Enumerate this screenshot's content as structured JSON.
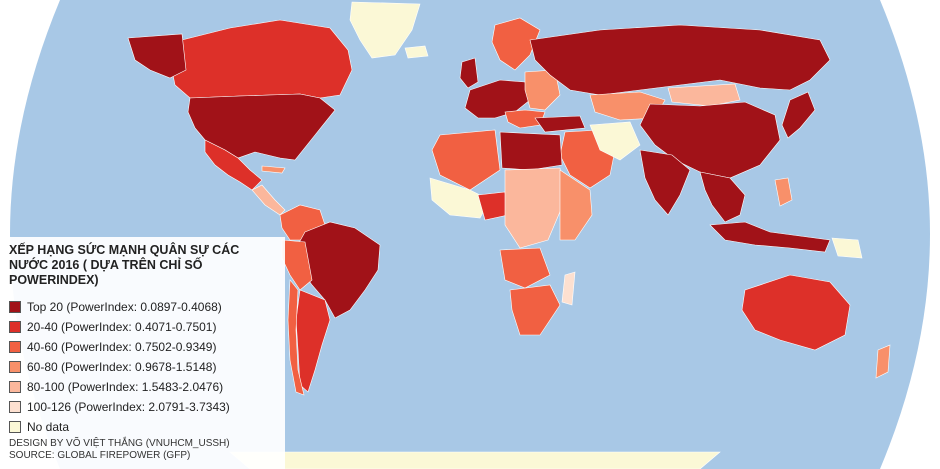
{
  "colors": {
    "ocean": "#a8c8e6",
    "no_data": "#fbf8d6",
    "top20": "#a11218",
    "r20_40": "#dd3029",
    "r40_60": "#f16042",
    "r60_80": "#f8906a",
    "r80_100": "#fbb79c",
    "r100_126": "#fde0d0"
  },
  "legend": {
    "title": "XẾP HẠNG SỨC MẠNH QUÂN SỰ CÁC NƯỚC 2016 ( DỰA TRÊN CHỈ SỐ POWERINDEX)",
    "items": [
      {
        "label": "Top 20 (PowerIndex: 0.0897-0.4068)",
        "color": "#a11218"
      },
      {
        "label": "20-40 (PowerIndex: 0.4071-0.7501)",
        "color": "#dd3029"
      },
      {
        "label": "40-60 (PowerIndex: 0.7502-0.9349)",
        "color": "#f16042"
      },
      {
        "label": "60-80 (PowerIndex: 0.9678-1.5148)",
        "color": "#f8906a"
      },
      {
        "label": "80-100 (PowerIndex: 1.5483-2.0476)",
        "color": "#fbb79c"
      },
      {
        "label": "100-126 (PowerIndex: 2.0791-3.7343)",
        "color": "#fde0d0"
      },
      {
        "label": "No data",
        "color": "#fbf8d6"
      }
    ]
  },
  "credits": {
    "design": "DESIGN BY VÕ VIỆT THẮNG (VNUHCM_USSH)",
    "source": "SOURCE: GLOBAL FIREPOWER (GFP)"
  }
}
